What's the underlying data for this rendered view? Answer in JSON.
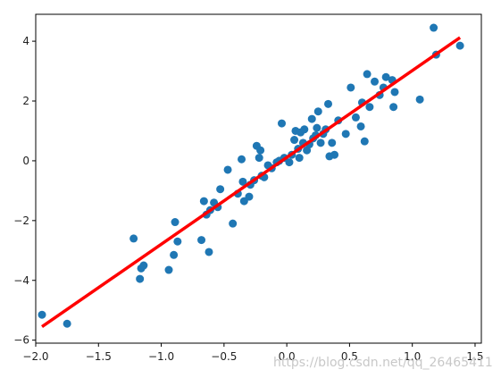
{
  "chart_data": {
    "type": "scatter",
    "title": "",
    "xlabel": "",
    "ylabel": "",
    "xlim": [
      -2.0,
      1.55
    ],
    "ylim": [
      -6.1,
      4.9
    ],
    "grid": false,
    "x_ticks": [
      -2.0,
      -1.5,
      -1.0,
      -0.5,
      0.0,
      0.5,
      1.0,
      1.5
    ],
    "y_ticks": [
      -6,
      -4,
      -2,
      0,
      2,
      4
    ],
    "x_tick_labels": [
      "−2.0",
      "−1.5",
      "−1.0",
      "−0.5",
      "0.0",
      "0.5",
      "1.0",
      "1.5"
    ],
    "y_tick_labels": [
      "−6",
      "−4",
      "−2",
      "0",
      "2",
      "4"
    ],
    "points_color": "#1f77b4",
    "line_color": "#ff0000",
    "points": [
      [
        -1.95,
        -5.15
      ],
      [
        -1.75,
        -5.45
      ],
      [
        -1.22,
        -2.6
      ],
      [
        -1.17,
        -3.95
      ],
      [
        -1.16,
        -3.6
      ],
      [
        -1.14,
        -3.5
      ],
      [
        -0.94,
        -3.65
      ],
      [
        -0.9,
        -3.15
      ],
      [
        -0.89,
        -2.05
      ],
      [
        -0.87,
        -2.7
      ],
      [
        -0.68,
        -2.65
      ],
      [
        -0.66,
        -1.35
      ],
      [
        -0.64,
        -1.8
      ],
      [
        -0.62,
        -3.05
      ],
      [
        -0.61,
        -1.65
      ],
      [
        -0.58,
        -1.4
      ],
      [
        -0.55,
        -1.55
      ],
      [
        -0.53,
        -0.95
      ],
      [
        -0.47,
        -0.3
      ],
      [
        -0.43,
        -2.1
      ],
      [
        -0.39,
        -1.1
      ],
      [
        -0.36,
        0.05
      ],
      [
        -0.35,
        -0.7
      ],
      [
        -0.34,
        -1.35
      ],
      [
        -0.3,
        -1.2
      ],
      [
        -0.29,
        -0.8
      ],
      [
        -0.26,
        -0.65
      ],
      [
        -0.24,
        0.5
      ],
      [
        -0.22,
        0.1
      ],
      [
        -0.21,
        0.35
      ],
      [
        -0.2,
        -0.5
      ],
      [
        -0.18,
        -0.55
      ],
      [
        -0.15,
        -0.15
      ],
      [
        -0.12,
        -0.25
      ],
      [
        -0.08,
        -0.05
      ],
      [
        -0.06,
        0.0
      ],
      [
        -0.04,
        1.25
      ],
      [
        -0.02,
        0.1
      ],
      [
        0.02,
        -0.05
      ],
      [
        0.04,
        0.2
      ],
      [
        0.06,
        0.7
      ],
      [
        0.07,
        1.0
      ],
      [
        0.09,
        0.4
      ],
      [
        0.1,
        0.1
      ],
      [
        0.11,
        0.95
      ],
      [
        0.13,
        0.6
      ],
      [
        0.14,
        1.05
      ],
      [
        0.16,
        0.35
      ],
      [
        0.18,
        0.55
      ],
      [
        0.2,
        1.4
      ],
      [
        0.21,
        0.75
      ],
      [
        0.23,
        0.85
      ],
      [
        0.24,
        1.1
      ],
      [
        0.25,
        1.65
      ],
      [
        0.27,
        0.6
      ],
      [
        0.29,
        0.9
      ],
      [
        0.31,
        1.05
      ],
      [
        0.33,
        1.9
      ],
      [
        0.34,
        0.15
      ],
      [
        0.36,
        0.6
      ],
      [
        0.38,
        0.2
      ],
      [
        0.41,
        1.35
      ],
      [
        0.47,
        0.9
      ],
      [
        0.51,
        2.45
      ],
      [
        0.55,
        1.45
      ],
      [
        0.59,
        1.15
      ],
      [
        0.6,
        1.95
      ],
      [
        0.62,
        0.65
      ],
      [
        0.64,
        2.9
      ],
      [
        0.66,
        1.8
      ],
      [
        0.7,
        2.65
      ],
      [
        0.74,
        2.2
      ],
      [
        0.77,
        2.45
      ],
      [
        0.79,
        2.8
      ],
      [
        0.84,
        2.7
      ],
      [
        0.86,
        2.3
      ],
      [
        0.85,
        1.8
      ],
      [
        1.06,
        2.05
      ],
      [
        1.17,
        4.45
      ],
      [
        1.19,
        3.55
      ],
      [
        1.38,
        3.85
      ]
    ],
    "fit_line": {
      "x": [
        -1.95,
        1.38
      ],
      "y": [
        -5.55,
        4.12
      ]
    }
  },
  "watermark": "https://blog.csdn.net/qq_26465411"
}
